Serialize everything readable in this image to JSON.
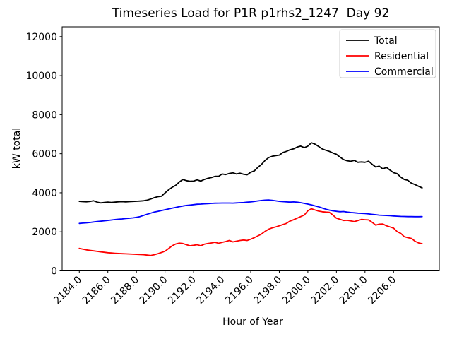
{
  "chart_data": {
    "type": "line",
    "title": "Timeseries Load for P1R p1rhs2_1247  Day 92",
    "xlabel": "Hour of Year",
    "ylabel": "kW total",
    "xlim": [
      2182.8,
      2209.2
    ],
    "ylim": [
      0,
      12500
    ],
    "xticks": [
      2184.0,
      2186.0,
      2188.0,
      2190.0,
      2192.0,
      2194.0,
      2196.0,
      2198.0,
      2200.0,
      2202.0,
      2204.0,
      2206.0
    ],
    "yticks": [
      0,
      2000,
      4000,
      6000,
      8000,
      10000,
      12000
    ],
    "grid": false,
    "legend_position": "upper right",
    "x": [
      2184.0,
      2184.25,
      2184.5,
      2184.75,
      2185.0,
      2185.25,
      2185.5,
      2185.75,
      2186.0,
      2186.25,
      2186.5,
      2186.75,
      2187.0,
      2187.25,
      2187.5,
      2187.75,
      2188.0,
      2188.25,
      2188.5,
      2188.75,
      2189.0,
      2189.25,
      2189.5,
      2189.75,
      2190.0,
      2190.25,
      2190.5,
      2190.75,
      2191.0,
      2191.25,
      2191.5,
      2191.75,
      2192.0,
      2192.25,
      2192.5,
      2192.75,
      2193.0,
      2193.25,
      2193.5,
      2193.75,
      2194.0,
      2194.25,
      2194.5,
      2194.75,
      2195.0,
      2195.25,
      2195.5,
      2195.75,
      2196.0,
      2196.25,
      2196.5,
      2196.75,
      2197.0,
      2197.25,
      2197.5,
      2197.75,
      2198.0,
      2198.25,
      2198.5,
      2198.75,
      2199.0,
      2199.25,
      2199.5,
      2199.75,
      2200.0,
      2200.25,
      2200.5,
      2200.75,
      2201.0,
      2201.25,
      2201.5,
      2201.75,
      2202.0,
      2202.25,
      2202.5,
      2202.75,
      2203.0,
      2203.25,
      2203.5,
      2203.75,
      2204.0,
      2204.25,
      2204.5,
      2204.75,
      2205.0,
      2205.25,
      2205.5,
      2205.75,
      2206.0,
      2206.25,
      2206.5,
      2206.75,
      2207.0,
      2207.25,
      2207.5,
      2207.75,
      2208.0
    ],
    "series": [
      {
        "name": "Total",
        "color": "#000000",
        "values": [
          3560,
          3545,
          3540,
          3555,
          3590,
          3520,
          3480,
          3505,
          3520,
          3505,
          3520,
          3540,
          3545,
          3530,
          3545,
          3555,
          3565,
          3575,
          3590,
          3620,
          3680,
          3750,
          3800,
          3820,
          3990,
          4150,
          4280,
          4380,
          4550,
          4680,
          4620,
          4590,
          4600,
          4660,
          4600,
          4680,
          4740,
          4780,
          4840,
          4840,
          4960,
          4930,
          4990,
          5020,
          4960,
          5000,
          4950,
          4920,
          5050,
          5120,
          5300,
          5450,
          5650,
          5800,
          5870,
          5900,
          5930,
          6060,
          6120,
          6200,
          6250,
          6340,
          6390,
          6310,
          6390,
          6560,
          6490,
          6370,
          6250,
          6180,
          6120,
          6040,
          5970,
          5830,
          5700,
          5640,
          5610,
          5660,
          5560,
          5580,
          5560,
          5620,
          5460,
          5320,
          5360,
          5220,
          5300,
          5160,
          5030,
          4980,
          4800,
          4680,
          4640,
          4490,
          4420,
          4330,
          4250
        ]
      },
      {
        "name": "Residential",
        "color": "#ff0000",
        "values": [
          1150,
          1110,
          1075,
          1050,
          1025,
          1000,
          975,
          950,
          930,
          915,
          900,
          890,
          880,
          872,
          865,
          855,
          845,
          838,
          830,
          805,
          785,
          830,
          880,
          940,
          1005,
          1140,
          1280,
          1375,
          1420,
          1400,
          1340,
          1285,
          1310,
          1340,
          1285,
          1365,
          1400,
          1430,
          1465,
          1410,
          1460,
          1500,
          1555,
          1485,
          1520,
          1555,
          1580,
          1555,
          1620,
          1700,
          1790,
          1885,
          2020,
          2130,
          2200,
          2250,
          2310,
          2370,
          2430,
          2550,
          2620,
          2700,
          2780,
          2860,
          3080,
          3180,
          3120,
          3060,
          3030,
          3010,
          3000,
          2860,
          2700,
          2640,
          2580,
          2590,
          2560,
          2520,
          2575,
          2635,
          2620,
          2610,
          2490,
          2340,
          2390,
          2400,
          2310,
          2250,
          2190,
          2010,
          1920,
          1750,
          1700,
          1660,
          1520,
          1430,
          1390
        ]
      },
      {
        "name": "Commercial",
        "color": "#0000ff",
        "values": [
          2430,
          2445,
          2460,
          2480,
          2505,
          2525,
          2545,
          2565,
          2585,
          2605,
          2625,
          2645,
          2660,
          2680,
          2695,
          2715,
          2740,
          2780,
          2840,
          2900,
          2955,
          3010,
          3050,
          3090,
          3130,
          3170,
          3210,
          3250,
          3290,
          3320,
          3350,
          3370,
          3390,
          3410,
          3420,
          3435,
          3445,
          3455,
          3465,
          3470,
          3475,
          3475,
          3475,
          3470,
          3480,
          3490,
          3500,
          3515,
          3530,
          3555,
          3580,
          3605,
          3620,
          3630,
          3615,
          3585,
          3560,
          3545,
          3530,
          3520,
          3530,
          3515,
          3490,
          3455,
          3420,
          3380,
          3330,
          3280,
          3220,
          3160,
          3110,
          3075,
          3050,
          3030,
          3040,
          3010,
          2990,
          2975,
          2955,
          2945,
          2935,
          2915,
          2895,
          2875,
          2855,
          2845,
          2835,
          2825,
          2810,
          2800,
          2790,
          2785,
          2780,
          2778,
          2775,
          2775,
          2780
        ]
      }
    ],
    "styles": {
      "line_width": 1.8,
      "spine_color": "#000000",
      "legend_border_color": "#cccccc",
      "tick_label_format_x_decimals": 1
    }
  }
}
